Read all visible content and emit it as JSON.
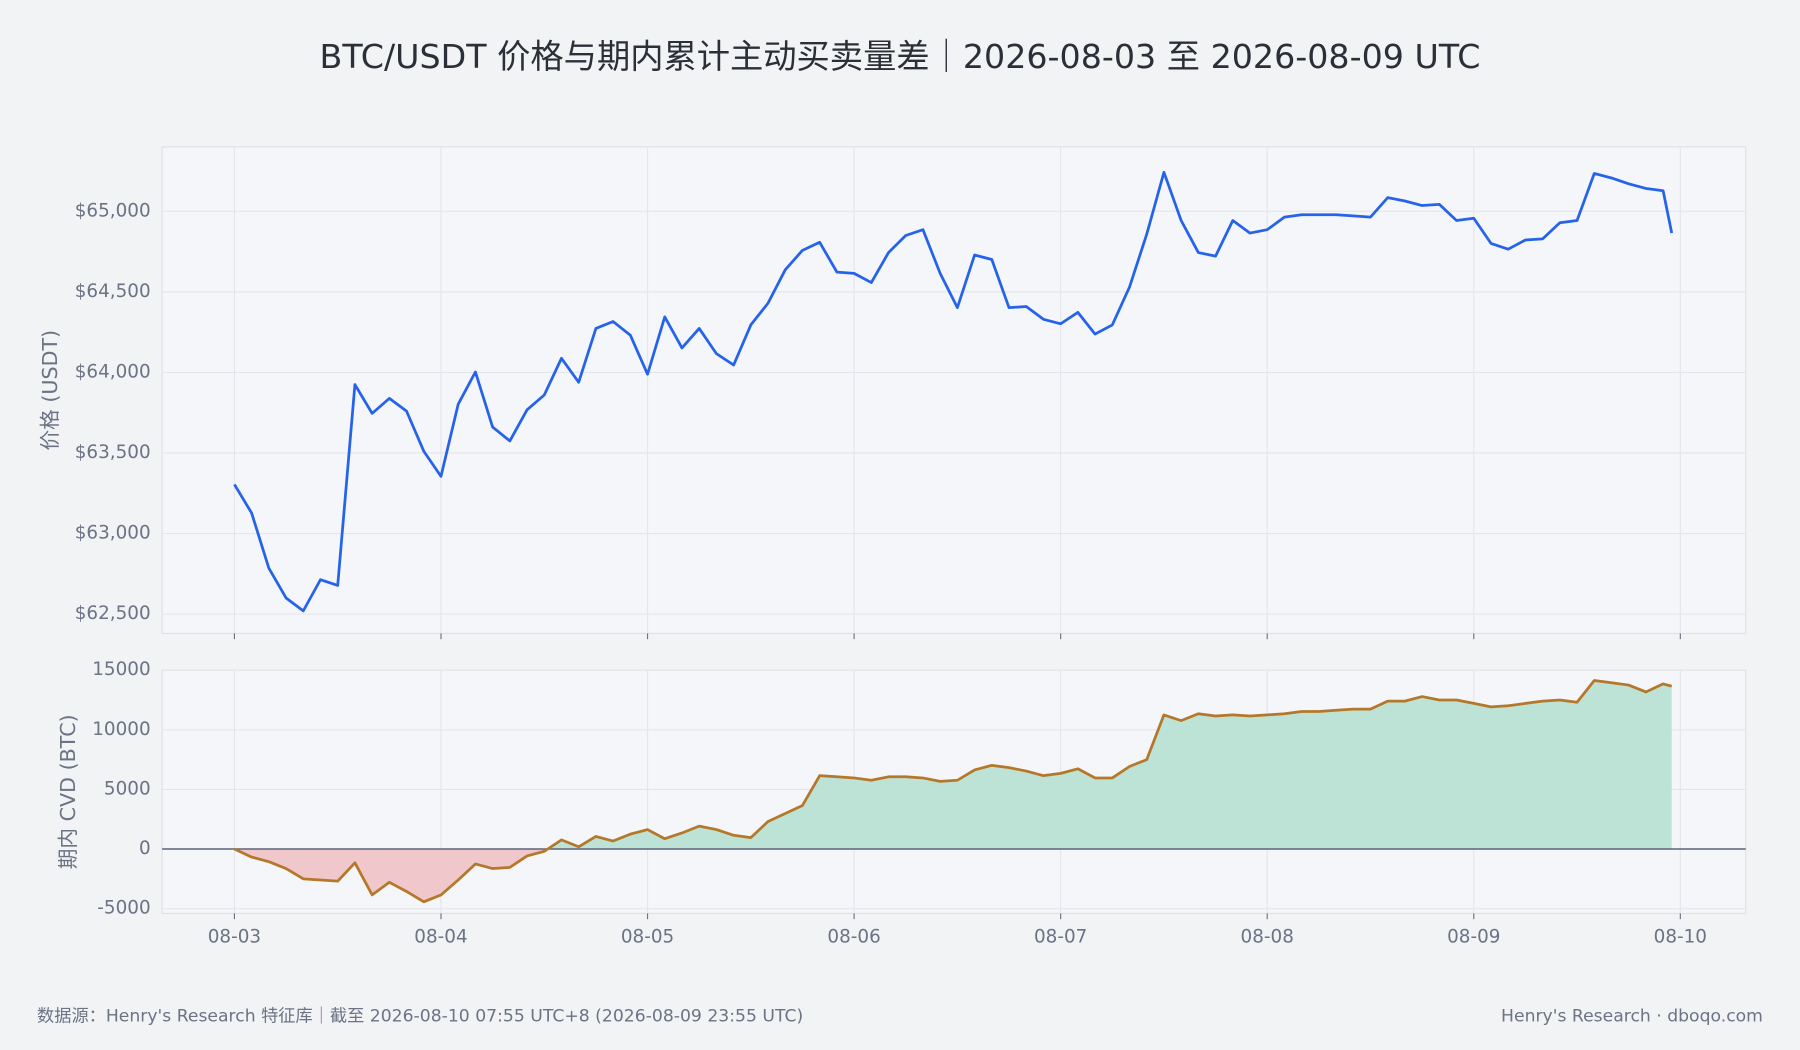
{
  "title": "BTC/USDT 价格与期内累计主动买卖量差｜2026-08-03 至 2026-08-09 UTC",
  "footer": {
    "source": "数据源：Henry's Research 特征库｜截至 2026-08-10 07:55 UTC+8 (2026-08-09 23:55 UTC)",
    "brand": "Henry's Research · dboqo.com"
  },
  "chart_data": [
    {
      "type": "line",
      "y_label": "价格 (USDT)",
      "color": "#2563eb",
      "grid": true,
      "xlim": [
        -8.4,
        175.6
      ],
      "ylim": [
        62380,
        65400
      ],
      "yticks": [
        {
          "value": 62500,
          "label": "$62,500"
        },
        {
          "value": 63000,
          "label": "$63,000"
        },
        {
          "value": 63500,
          "label": "$63,500"
        },
        {
          "value": 64000,
          "label": "$64,000"
        },
        {
          "value": 64500,
          "label": "$64,500"
        },
        {
          "value": 65000,
          "label": "$65,000"
        }
      ],
      "x": [
        0,
        2,
        4,
        6,
        8,
        10,
        12,
        14,
        16,
        18,
        20,
        22,
        24,
        26,
        28,
        30,
        32,
        34,
        36,
        38,
        40,
        42,
        44,
        46,
        48,
        50,
        52,
        54,
        56,
        58,
        60,
        62,
        64,
        66,
        68,
        70,
        72,
        74,
        76,
        78,
        80,
        82,
        84,
        86,
        88,
        90,
        92,
        94,
        96,
        98,
        100,
        102,
        104,
        106,
        108,
        110,
        112,
        114,
        116,
        118,
        120,
        122,
        124,
        126,
        128,
        130,
        132,
        134,
        136,
        138,
        140,
        142,
        144,
        146,
        148,
        150,
        152,
        154,
        156,
        158,
        160,
        162,
        164,
        166,
        167
      ],
      "values": [
        63305,
        63127,
        62785,
        62600,
        62520,
        62714,
        62678,
        63925,
        63746,
        63839,
        63760,
        63511,
        63355,
        63803,
        64003,
        63661,
        63575,
        63768,
        63860,
        64088,
        63939,
        64273,
        64316,
        64231,
        63989,
        64345,
        64152,
        64273,
        64117,
        64046,
        64295,
        64430,
        64637,
        64758,
        64808,
        64623,
        64615,
        64558,
        64744,
        64850,
        64886,
        64615,
        64402,
        64729,
        64701,
        64402,
        64409,
        64330,
        64302,
        64373,
        64238,
        64295,
        64530,
        64858,
        65242,
        64943,
        64744,
        64722,
        64943,
        64865,
        64886,
        64964,
        64979,
        64979,
        64979,
        64972,
        64964,
        65085,
        65064,
        65036,
        65043,
        64943,
        64957,
        64801,
        64765,
        64822,
        64829,
        64929,
        64943,
        65235,
        65207,
        65171,
        65142,
        65128,
        64865
      ]
    },
    {
      "type": "area",
      "y_label": "期内 CVD (BTC)",
      "color": "#b5782a",
      "fill_positive": "#bde3d7",
      "fill_negative": "#f0c8cc",
      "grid": true,
      "xlim": [
        -8.4,
        175.6
      ],
      "ylim": [
        -5400,
        15000
      ],
      "yticks": [
        -5000,
        0,
        5000,
        10000,
        15000
      ],
      "xticks": [
        {
          "value": 0,
          "label": "08-03"
        },
        {
          "value": 24,
          "label": "08-04"
        },
        {
          "value": 48,
          "label": "08-05"
        },
        {
          "value": 72,
          "label": "08-06"
        },
        {
          "value": 96,
          "label": "08-07"
        },
        {
          "value": 120,
          "label": "08-08"
        },
        {
          "value": 144,
          "label": "08-09"
        },
        {
          "value": 168,
          "label": "08-10"
        }
      ],
      "x": [
        0,
        2,
        4,
        6,
        8,
        10,
        12,
        14,
        16,
        18,
        20,
        22,
        24,
        26,
        28,
        30,
        32,
        34,
        36,
        38,
        40,
        42,
        44,
        46,
        48,
        50,
        52,
        54,
        56,
        58,
        60,
        62,
        64,
        66,
        68,
        70,
        72,
        74,
        76,
        78,
        80,
        82,
        84,
        86,
        88,
        90,
        92,
        94,
        96,
        98,
        100,
        102,
        104,
        106,
        108,
        110,
        112,
        114,
        116,
        118,
        120,
        122,
        124,
        126,
        128,
        130,
        132,
        134,
        136,
        138,
        140,
        142,
        144,
        146,
        148,
        150,
        152,
        154,
        156,
        158,
        160,
        162,
        164,
        166,
        167
      ],
      "values": [
        0,
        -673,
        -1058,
        -1635,
        -2500,
        -2596,
        -2692,
        -1154,
        -3846,
        -2788,
        -3558,
        -4423,
        -3846,
        -2596,
        -1250,
        -1635,
        -1538,
        -577,
        -192,
        769,
        192,
        1058,
        673,
        1250,
        1635,
        865,
        1346,
        1923,
        1635,
        1154,
        962,
        2308,
        2981,
        3654,
        6154,
        6058,
        5962,
        5769,
        6058,
        6058,
        5962,
        5673,
        5769,
        6635,
        7019,
        6827,
        6538,
        6154,
        6346,
        6731,
        5962,
        5962,
        6923,
        7500,
        11250,
        10769,
        11346,
        11154,
        11250,
        11154,
        11250,
        11346,
        11538,
        11538,
        11635,
        11731,
        11731,
        12404,
        12404,
        12788,
        12500,
        12500,
        12212,
        11923,
        12019,
        12212,
        12404,
        12500,
        12308,
        14135,
        13942,
        13750,
        13173,
        13846,
        13654
      ]
    }
  ]
}
